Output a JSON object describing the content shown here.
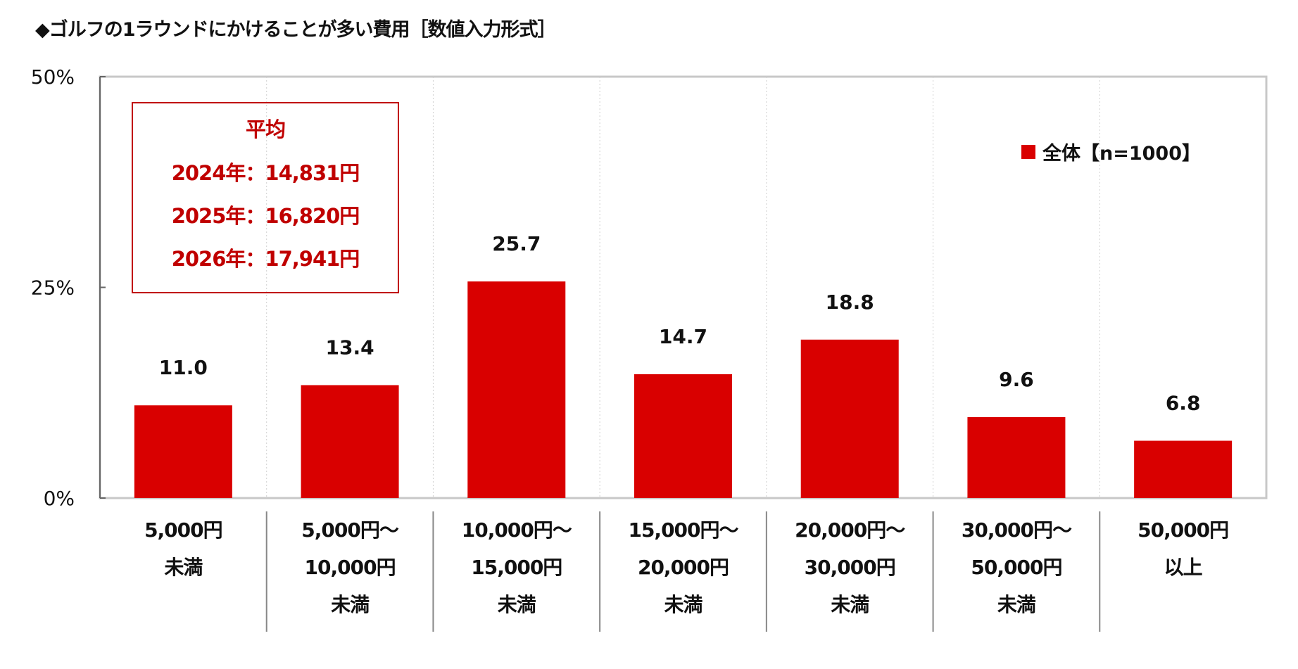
{
  "chart_data": {
    "type": "bar",
    "title": "◆ゴルフの1ラウンドにかけることが多い費用［数値入力形式］",
    "categories": [
      [
        "5,000円",
        "未満"
      ],
      [
        "5,000円～",
        "10,000円",
        "未満"
      ],
      [
        "10,000円～",
        "15,000円",
        "未満"
      ],
      [
        "15,000円～",
        "20,000円",
        "未満"
      ],
      [
        "20,000円～",
        "30,000円",
        "未満"
      ],
      [
        "30,000円～",
        "50,000円",
        "未満"
      ],
      [
        "50,000円",
        "以上"
      ]
    ],
    "series": [
      {
        "name": "全体【n=1000】",
        "values": [
          11.0,
          13.4,
          25.7,
          14.7,
          18.8,
          9.6,
          6.8
        ],
        "color": "#d90000"
      }
    ],
    "value_labels": [
      "11.0",
      "13.4",
      "25.7",
      "14.7",
      "18.8",
      "9.6",
      "6.8"
    ],
    "ylim": [
      0,
      50
    ],
    "yticks": [
      0,
      25,
      50
    ],
    "ytick_labels": [
      "0%",
      "25%",
      "50%"
    ],
    "xlabel": "",
    "ylabel": "",
    "grid": "vertical dotted",
    "legend_position": "top-right",
    "annotation": {
      "heading": "平均",
      "lines": [
        "2024年：14,831円",
        "2025年：16,820円",
        "2026年：17,941円"
      ],
      "color": "#c00000"
    }
  }
}
